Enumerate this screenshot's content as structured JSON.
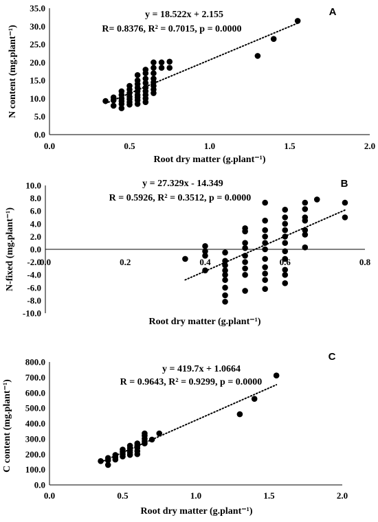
{
  "chart_data": [
    {
      "type": "scatter",
      "panel_label": "A",
      "equation": "y = 18.522x + 2.155",
      "stats": "R= 0.8376, R² = 0.7015, p = 0.0000",
      "xlabel": "Root dry matter (g.plant⁻¹)",
      "ylabel": "N content (mg.plant⁻¹)",
      "xlim": [
        0,
        2
      ],
      "ylim": [
        0,
        35
      ],
      "xticks": [
        "0.0",
        "0.5",
        "1.0",
        "1.5",
        "2.0"
      ],
      "yticks": [
        "0.0",
        "5.0",
        "10.0",
        "15.0",
        "20.0",
        "25.0",
        "30.0",
        "35.0"
      ],
      "trendline": {
        "slope": 18.522,
        "intercept": 2.155,
        "x_range": [
          0.35,
          1.55
        ]
      },
      "grid": false,
      "points": [
        [
          0.35,
          9.3
        ],
        [
          0.4,
          8.0
        ],
        [
          0.4,
          9.5
        ],
        [
          0.4,
          10.3
        ],
        [
          0.45,
          7.3
        ],
        [
          0.45,
          8.5
        ],
        [
          0.45,
          9.3
        ],
        [
          0.45,
          10.0
        ],
        [
          0.45,
          11.0
        ],
        [
          0.45,
          12.0
        ],
        [
          0.5,
          8.3
        ],
        [
          0.5,
          9.0
        ],
        [
          0.5,
          9.8
        ],
        [
          0.5,
          10.5
        ],
        [
          0.5,
          11.5
        ],
        [
          0.5,
          12.5
        ],
        [
          0.5,
          13.5
        ],
        [
          0.55,
          8.5
        ],
        [
          0.55,
          9.5
        ],
        [
          0.55,
          10.3
        ],
        [
          0.55,
          11.0
        ],
        [
          0.55,
          12.0
        ],
        [
          0.55,
          13.0
        ],
        [
          0.55,
          14.0
        ],
        [
          0.55,
          15.0
        ],
        [
          0.55,
          16.5
        ],
        [
          0.6,
          9.0
        ],
        [
          0.6,
          10.0
        ],
        [
          0.6,
          11.0
        ],
        [
          0.6,
          12.0
        ],
        [
          0.6,
          13.0
        ],
        [
          0.6,
          14.3
        ],
        [
          0.6,
          15.5
        ],
        [
          0.6,
          17.0
        ],
        [
          0.6,
          18.0
        ],
        [
          0.65,
          11.5
        ],
        [
          0.65,
          12.5
        ],
        [
          0.65,
          13.5
        ],
        [
          0.65,
          14.5
        ],
        [
          0.65,
          15.5
        ],
        [
          0.65,
          17.0
        ],
        [
          0.65,
          18.5
        ],
        [
          0.65,
          20.0
        ],
        [
          0.7,
          18.5
        ],
        [
          0.7,
          20.0
        ],
        [
          0.75,
          18.5
        ],
        [
          0.75,
          20.2
        ],
        [
          1.3,
          21.8
        ],
        [
          1.4,
          26.5
        ],
        [
          1.55,
          31.5
        ]
      ]
    },
    {
      "type": "scatter",
      "panel_label": "B",
      "equation": "y = 27.329x - 14.349",
      "stats": "R = 0.5926, R² = 0.3512, p = 0.0000",
      "xlabel": "Root dry matter (g.plant⁻¹)",
      "ylabel": "N-fixed (mg.plant⁻¹)",
      "xlim": [
        0,
        0.8
      ],
      "ylim": [
        -10,
        10
      ],
      "xticks": [
        "0.0",
        "0.2",
        "0.4",
        "0.6",
        "0.8"
      ],
      "yticks": [
        "-10.0",
        "-8.0",
        "-6.0",
        "-4.0",
        "-2.0",
        "0.0",
        "2.0",
        "4.0",
        "6.0",
        "8.0",
        "10.0"
      ],
      "trendline": {
        "slope": 27.329,
        "intercept": -14.349,
        "x_range": [
          0.35,
          0.75
        ]
      },
      "grid": false,
      "points": [
        [
          0.35,
          -1.5
        ],
        [
          0.4,
          -3.3
        ],
        [
          0.4,
          -1.0
        ],
        [
          0.4,
          -0.3
        ],
        [
          0.4,
          0.5
        ],
        [
          0.45,
          -8.2
        ],
        [
          0.45,
          -7.2
        ],
        [
          0.45,
          -6.0
        ],
        [
          0.45,
          -4.8
        ],
        [
          0.45,
          -4.0
        ],
        [
          0.45,
          -3.3
        ],
        [
          0.45,
          -2.5
        ],
        [
          0.45,
          -1.8
        ],
        [
          0.45,
          -0.5
        ],
        [
          0.5,
          -6.5
        ],
        [
          0.5,
          -4.0
        ],
        [
          0.5,
          -3.0
        ],
        [
          0.5,
          -2.0
        ],
        [
          0.5,
          -1.0
        ],
        [
          0.5,
          0.2
        ],
        [
          0.5,
          1.0
        ],
        [
          0.5,
          2.8
        ],
        [
          0.5,
          3.3
        ],
        [
          0.55,
          -6.2
        ],
        [
          0.55,
          -4.8
        ],
        [
          0.55,
          -3.8
        ],
        [
          0.55,
          -2.8
        ],
        [
          0.55,
          -1.5
        ],
        [
          0.55,
          0.0
        ],
        [
          0.55,
          1.0
        ],
        [
          0.55,
          2.0
        ],
        [
          0.55,
          3.0
        ],
        [
          0.55,
          4.5
        ],
        [
          0.55,
          7.3
        ],
        [
          0.6,
          -5.3
        ],
        [
          0.6,
          -4.0
        ],
        [
          0.6,
          -3.2
        ],
        [
          0.6,
          -1.5
        ],
        [
          0.6,
          -0.3
        ],
        [
          0.6,
          1.0
        ],
        [
          0.6,
          2.0
        ],
        [
          0.6,
          3.0
        ],
        [
          0.6,
          4.0
        ],
        [
          0.6,
          5.0
        ],
        [
          0.6,
          6.2
        ],
        [
          0.65,
          0.3
        ],
        [
          0.65,
          2.3
        ],
        [
          0.65,
          3.0
        ],
        [
          0.65,
          4.5
        ],
        [
          0.65,
          5.0
        ],
        [
          0.65,
          6.3
        ],
        [
          0.65,
          7.3
        ],
        [
          0.68,
          7.8
        ],
        [
          0.75,
          5.0
        ],
        [
          0.75,
          7.3
        ]
      ]
    },
    {
      "type": "scatter",
      "panel_label": "C",
      "equation": "y = 419.7x + 1.0664",
      "stats": "R = 0.9643, R² = 0.9299, p = 0.0000",
      "xlabel": "Root dry matter (g.plant⁻¹)",
      "ylabel": "C content (mg.plant⁻¹)",
      "xlim": [
        0,
        2
      ],
      "ylim": [
        0,
        800
      ],
      "xticks": [
        "0.0",
        "0.5",
        "1.0",
        "1.5",
        "2.0"
      ],
      "yticks": [
        "0.0",
        "100.0",
        "200.0",
        "300.0",
        "400.0",
        "500.0",
        "600.0",
        "700.0",
        "800.0"
      ],
      "trendline": {
        "slope": 419.7,
        "intercept": 1.0664,
        "x_range": [
          0.35,
          1.55
        ]
      },
      "grid": false,
      "points": [
        [
          0.35,
          155
        ],
        [
          0.4,
          130
        ],
        [
          0.4,
          160
        ],
        [
          0.4,
          175
        ],
        [
          0.45,
          165
        ],
        [
          0.45,
          180
        ],
        [
          0.45,
          195
        ],
        [
          0.5,
          185
        ],
        [
          0.5,
          200
        ],
        [
          0.5,
          215
        ],
        [
          0.5,
          230
        ],
        [
          0.55,
          195
        ],
        [
          0.55,
          210
        ],
        [
          0.55,
          225
        ],
        [
          0.55,
          240
        ],
        [
          0.55,
          255
        ],
        [
          0.6,
          200
        ],
        [
          0.6,
          220
        ],
        [
          0.6,
          240
        ],
        [
          0.6,
          255
        ],
        [
          0.6,
          270
        ],
        [
          0.65,
          270
        ],
        [
          0.65,
          285
        ],
        [
          0.65,
          300
        ],
        [
          0.65,
          320
        ],
        [
          0.65,
          335
        ],
        [
          0.7,
          295
        ],
        [
          0.75,
          335
        ],
        [
          1.3,
          460
        ],
        [
          1.4,
          560
        ],
        [
          1.55,
          712
        ]
      ]
    }
  ]
}
